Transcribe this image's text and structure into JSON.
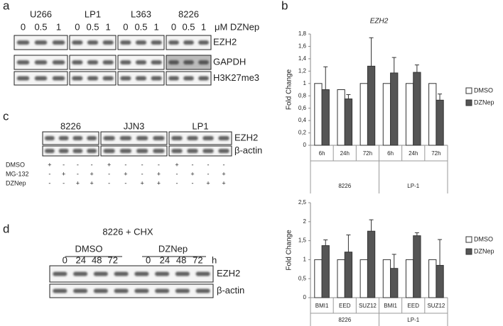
{
  "panels": {
    "a": {
      "label": "a",
      "cell_lines": [
        "U266",
        "LP1",
        "L363",
        "8226"
      ],
      "doses": [
        "0",
        "0.5",
        "1"
      ],
      "dose_unit": "μM DZNep",
      "bands": [
        "EZH2",
        "GAPDH",
        "H3K27me3"
      ]
    },
    "b": {
      "label": "b"
    },
    "c": {
      "label": "c",
      "cell_lines": [
        "8226",
        "JJN3",
        "LP1"
      ],
      "bands": [
        "EZH2",
        "β-actin"
      ],
      "treatments": [
        {
          "name": "DMSO",
          "signs": [
            "+",
            "-",
            "-",
            "-"
          ]
        },
        {
          "name": "MG-132",
          "signs": [
            "-",
            "+",
            "-",
            "+"
          ]
        },
        {
          "name": "DZNep",
          "signs": [
            "-",
            "-",
            "+",
            "+"
          ]
        }
      ]
    },
    "d": {
      "label": "d",
      "title": "8226 + CHX",
      "groups": [
        "DMSO",
        "DZNep"
      ],
      "times": [
        "0",
        "24",
        "48",
        "72"
      ],
      "time_unit": "h",
      "bands": [
        "EZH2",
        "β-actin"
      ]
    }
  },
  "chart_data": [
    {
      "type": "bar",
      "title": "EZH2",
      "y_label": "Fold Change",
      "categories": [
        "6h",
        "24h",
        "72h",
        "6h",
        "24h",
        "72h"
      ],
      "groups": [
        "8226",
        "LP-1"
      ],
      "series": [
        {
          "name": "DMSO",
          "color": "#ffffff",
          "values": [
            1,
            0.9,
            1,
            1,
            1,
            1
          ]
        },
        {
          "name": "DZNep",
          "color": "#555555",
          "values": [
            0.9,
            0.75,
            1.28,
            1.17,
            1.18,
            0.73
          ],
          "errors": [
            0.37,
            0.07,
            0.46,
            0.25,
            0.12,
            0.1
          ]
        }
      ],
      "ylim": [
        0,
        1.8
      ],
      "yticks": [
        0,
        {
          "value": 0.2,
          "label": "0,2"
        },
        {
          "value": 0.4,
          "label": "0,4"
        },
        {
          "value": 0.6,
          "label": "0,6"
        },
        {
          "value": 0.8,
          "label": "0,8"
        },
        1,
        {
          "value": 1.2,
          "label": "1,2"
        },
        {
          "value": 1.4,
          "label": "1,4"
        },
        {
          "value": 1.6,
          "label": "1,6"
        },
        {
          "value": 1.8,
          "label": "1,8"
        }
      ],
      "legend": "right"
    },
    {
      "type": "bar",
      "y_label": "Fold Change",
      "categories": [
        "BMI1",
        "EED",
        "SUZ12",
        "BMI1",
        "EED",
        "SUZ12"
      ],
      "groups": [
        "8226",
        "LP-1"
      ],
      "series": [
        {
          "name": "DMSO",
          "color": "#ffffff",
          "values": [
            1,
            1,
            1,
            1,
            1,
            1
          ]
        },
        {
          "name": "DZNep",
          "color": "#555555",
          "values": [
            1.37,
            1.2,
            1.75,
            0.77,
            1.63,
            0.85
          ],
          "errors": [
            0.15,
            0.45,
            0.3,
            0.37,
            0.08,
            0.68
          ]
        }
      ],
      "ylim": [
        0,
        2.5
      ],
      "yticks": [
        0,
        {
          "value": 0.5,
          "label": "0,5"
        },
        1,
        {
          "value": 1.5,
          "label": "1,5"
        },
        2,
        {
          "value": 2.5,
          "label": "2,5"
        }
      ],
      "legend": "right"
    }
  ]
}
